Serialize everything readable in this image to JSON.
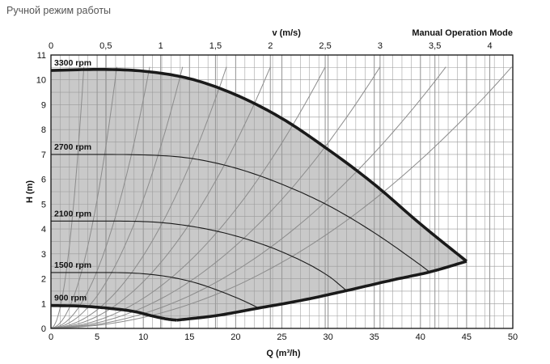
{
  "page": {
    "title": "Ручной режим работы"
  },
  "chart_data": {
    "type": "line",
    "title": "",
    "xlabel": "Q (m³/h)",
    "ylabel": "H (m)",
    "top_axis_label": "v (m/s)",
    "mode_label": "Manual Operation Mode",
    "xlim": [
      0,
      50
    ],
    "ylim": [
      0,
      11
    ],
    "top_lim": [
      0,
      4.2
    ],
    "x_ticks": [
      "0",
      "5",
      "10",
      "15",
      "20",
      "25",
      "30",
      "35",
      "40",
      "45",
      "50"
    ],
    "y_ticks": [
      "0",
      "1",
      "2",
      "3",
      "4",
      "5",
      "6",
      "7",
      "8",
      "9",
      "10",
      "11"
    ],
    "top_ticks": [
      "0",
      "0,5",
      "1",
      "1,5",
      "2",
      "2,5",
      "3",
      "3,5",
      "4"
    ],
    "grid": true,
    "colors": {
      "area": "#c9c9c9",
      "boundary": "#1a1a1a",
      "curve": "#222222",
      "system": "#8c8c8c",
      "grid": "#9a9a9a"
    },
    "series": [
      {
        "name": "3300 rpm",
        "x": [
          0,
          5,
          10,
          15,
          20,
          25,
          30,
          35,
          40,
          45
        ],
        "y": [
          10.38,
          10.42,
          10.35,
          10.05,
          9.4,
          8.45,
          7.2,
          5.8,
          4.2,
          2.7
        ]
      },
      {
        "name": "2700 rpm",
        "x": [
          0,
          5,
          10,
          15,
          20,
          25,
          30,
          35,
          40,
          41
        ],
        "y": [
          7.0,
          7.0,
          6.98,
          6.85,
          6.45,
          5.8,
          4.95,
          3.85,
          2.55,
          2.27
        ]
      },
      {
        "name": "2100 rpm",
        "x": [
          0,
          5,
          10,
          15,
          20,
          25,
          30,
          32
        ],
        "y": [
          4.32,
          4.32,
          4.3,
          4.12,
          3.72,
          3.08,
          2.12,
          1.52
        ]
      },
      {
        "name": "1500 rpm",
        "x": [
          0,
          5,
          10,
          15,
          20,
          22.5
        ],
        "y": [
          2.25,
          2.25,
          2.2,
          1.9,
          1.25,
          0.82
        ]
      },
      {
        "name": "900 rpm",
        "x": [
          0,
          3,
          6,
          9,
          11,
          12.5,
          13.6
        ],
        "y": [
          0.92,
          0.9,
          0.82,
          0.68,
          0.5,
          0.38,
          0.33
        ]
      }
    ],
    "lower_boundary": {
      "x": [
        13.6,
        18,
        22.5,
        27,
        32,
        37,
        41,
        45
      ],
      "y": [
        0.33,
        0.52,
        0.82,
        1.12,
        1.52,
        1.95,
        2.27,
        2.7
      ]
    },
    "system_curves_top_velocity": [
      0.3,
      0.6,
      0.9,
      1.2,
      1.6,
      2.0,
      2.5,
      3.0,
      3.6,
      4.2
    ],
    "system_curves_velocity_per_q": 0.0842
  }
}
